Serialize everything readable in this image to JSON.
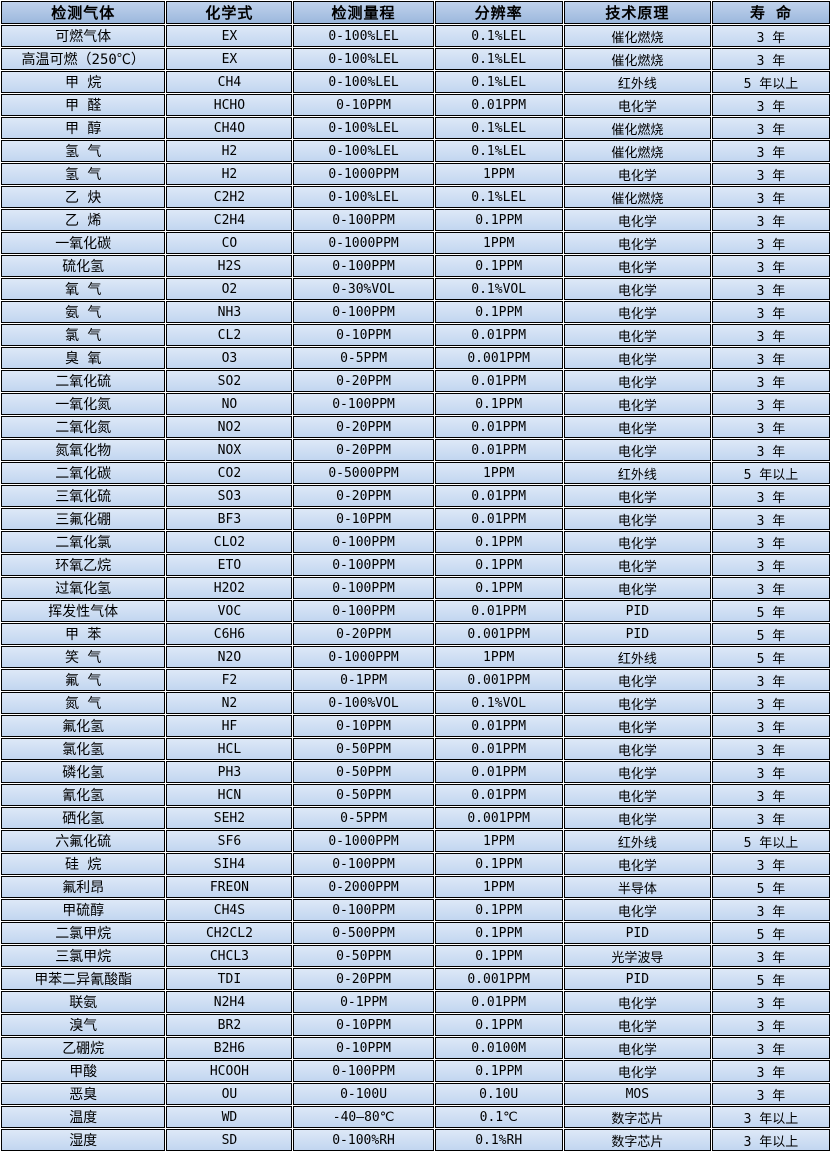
{
  "table": {
    "columns": [
      "检测气体",
      "化学式",
      "检测量程",
      "分辨率",
      "技术原理",
      "寿 命"
    ],
    "column_keys": [
      "gas",
      "formula",
      "range",
      "resolution",
      "principle",
      "lifespan"
    ],
    "rows": [
      [
        "可燃气体",
        "EX",
        "0-100%LEL",
        "0.1%LEL",
        "催化燃烧",
        "3 年"
      ],
      [
        "高温可燃（250℃）",
        "EX",
        "0-100%LEL",
        "0.1%LEL",
        "催化燃烧",
        "3 年"
      ],
      [
        "甲 烷",
        "CH4",
        "0-100%LEL",
        "0.1%LEL",
        "红外线",
        "5 年以上"
      ],
      [
        "甲 醛",
        "HCHO",
        "0-10PPM",
        "0.01PPM",
        "电化学",
        "3 年"
      ],
      [
        "甲 醇",
        "CH4O",
        "0-100%LEL",
        "0.1%LEL",
        "催化燃烧",
        "3 年"
      ],
      [
        "氢 气",
        "H2",
        "0-100%LEL",
        "0.1%LEL",
        "催化燃烧",
        "3 年"
      ],
      [
        "氢 气",
        "H2",
        "0-1000PPM",
        "1PPM",
        "电化学",
        "3 年"
      ],
      [
        "乙 炔",
        "C2H2",
        "0-100%LEL",
        "0.1%LEL",
        "催化燃烧",
        "3 年"
      ],
      [
        "乙 烯",
        "C2H4",
        "0-100PPM",
        "0.1PPM",
        "电化学",
        "3 年"
      ],
      [
        "一氧化碳",
        "CO",
        "0-1000PPM",
        "1PPM",
        "电化学",
        "3 年"
      ],
      [
        "硫化氢",
        "H2S",
        "0-100PPM",
        "0.1PPM",
        "电化学",
        "3 年"
      ],
      [
        "氧 气",
        "O2",
        "0-30%VOL",
        "0.1%VOL",
        "电化学",
        "3 年"
      ],
      [
        "氨 气",
        "NH3",
        "0-100PPM",
        "0.1PPM",
        "电化学",
        "3 年"
      ],
      [
        "氯 气",
        "CL2",
        "0-10PPM",
        "0.01PPM",
        "电化学",
        "3 年"
      ],
      [
        "臭 氧",
        "O3",
        "0-5PPM",
        "0.001PPM",
        "电化学",
        "3 年"
      ],
      [
        "二氧化硫",
        "SO2",
        "0-20PPM",
        "0.01PPM",
        "电化学",
        "3 年"
      ],
      [
        "一氧化氮",
        "NO",
        "0-100PPM",
        "0.1PPM",
        "电化学",
        "3 年"
      ],
      [
        "二氧化氮",
        "NO2",
        "0-20PPM",
        "0.01PPM",
        "电化学",
        "3 年"
      ],
      [
        "氮氧化物",
        "NOX",
        "0-20PPM",
        "0.01PPM",
        "电化学",
        "3 年"
      ],
      [
        "二氧化碳",
        "CO2",
        "0-5000PPM",
        "1PPM",
        "红外线",
        "5 年以上"
      ],
      [
        "三氧化硫",
        "SO3",
        "0-20PPM",
        "0.01PPM",
        "电化学",
        "3 年"
      ],
      [
        "三氟化硼",
        "BF3",
        "0-10PPM",
        "0.01PPM",
        "电化学",
        "3 年"
      ],
      [
        "二氧化氯",
        "CLO2",
        "0-100PPM",
        "0.1PPM",
        "电化学",
        "3 年"
      ],
      [
        "环氧乙烷",
        "ETO",
        "0-100PPM",
        "0.1PPM",
        "电化学",
        "3 年"
      ],
      [
        "过氧化氢",
        "H2O2",
        "0-100PPM",
        "0.1PPM",
        "电化学",
        "3 年"
      ],
      [
        "挥发性气体",
        "VOC",
        "0-100PPM",
        "0.01PPM",
        "PID",
        "5 年"
      ],
      [
        "甲 苯",
        "C6H6",
        "0-20PPM",
        "0.001PPM",
        "PID",
        "5 年"
      ],
      [
        "笑 气",
        "N2O",
        "0-1000PPM",
        "1PPM",
        "红外线",
        "5 年"
      ],
      [
        "氟 气",
        "F2",
        "0-1PPM",
        "0.001PPM",
        "电化学",
        "3 年"
      ],
      [
        "氮 气",
        "N2",
        "0-100%VOL",
        "0.1%VOL",
        "电化学",
        "3 年"
      ],
      [
        "氟化氢",
        "HF",
        "0-10PPM",
        "0.01PPM",
        "电化学",
        "3 年"
      ],
      [
        "氯化氢",
        "HCL",
        "0-50PPM",
        "0.01PPM",
        "电化学",
        "3 年"
      ],
      [
        "磷化氢",
        "PH3",
        "0-50PPM",
        "0.01PPM",
        "电化学",
        "3 年"
      ],
      [
        "氰化氢",
        "HCN",
        "0-50PPM",
        "0.01PPM",
        "电化学",
        "3 年"
      ],
      [
        "硒化氢",
        "SEH2",
        "0-5PPM",
        "0.001PPM",
        "电化学",
        "3 年"
      ],
      [
        "六氟化硫",
        "SF6",
        "0-1000PPM",
        "1PPM",
        "红外线",
        "5 年以上"
      ],
      [
        "硅 烷",
        "SIH4",
        "0-100PPM",
        "0.1PPM",
        "电化学",
        "3 年"
      ],
      [
        "氟利昂",
        "FREON",
        "0-2000PPM",
        "1PPM",
        "半导体",
        "5 年"
      ],
      [
        "甲硫醇",
        "CH4S",
        "0-100PPM",
        "0.1PPM",
        "电化学",
        "3 年"
      ],
      [
        "二氯甲烷",
        "CH2CL2",
        "0-500PPM",
        "0.1PPM",
        "PID",
        "5 年"
      ],
      [
        "三氯甲烷",
        "CHCL3",
        "0-50PPM",
        "0.1PPM",
        "光学波导",
        "3 年"
      ],
      [
        "甲苯二异氰酸酯",
        "TDI",
        "0-20PPM",
        "0.001PPM",
        "PID",
        "5 年"
      ],
      [
        "联氨",
        "N2H4",
        "0-1PPM",
        "0.01PPM",
        "电化学",
        "3 年"
      ],
      [
        "溴气",
        "BR2",
        "0-10PPM",
        "0.1PPM",
        "电化学",
        "3 年"
      ],
      [
        "乙硼烷",
        "B2H6",
        "0-10PPM",
        "0.0100M",
        "电化学",
        "3 年"
      ],
      [
        "甲酸",
        "HCOOH",
        "0-100PPM",
        "0.1PPM",
        "电化学",
        "3 年"
      ],
      [
        "恶臭",
        "OU",
        "0-100U",
        "0.10U",
        "MOS",
        "3 年"
      ],
      [
        "温度",
        "WD",
        "-40—80℃",
        "0.1℃",
        "数字芯片",
        "3 年以上"
      ],
      [
        "湿度",
        "SD",
        "0-100%RH",
        "0.1%RH",
        "数字芯片",
        "3 年以上"
      ]
    ]
  },
  "colors": {
    "header_top": "#c0d2ec",
    "header_bottom": "#9cb8dd",
    "cell_top": "#dde8f7",
    "cell_bottom": "#c2d6f0",
    "border": "#000000",
    "gap": "#ffffff",
    "text": "#000000"
  }
}
